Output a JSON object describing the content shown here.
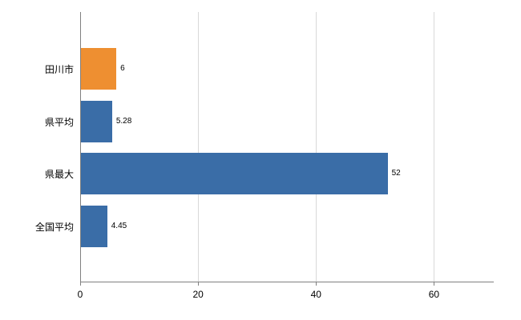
{
  "chart_data": {
    "type": "bar",
    "orientation": "horizontal",
    "title": "",
    "xlabel": "",
    "ylabel": "",
    "categories": [
      "田川市",
      "県平均",
      "県最大",
      "全国平均"
    ],
    "values": [
      6,
      5.28,
      52,
      4.45
    ],
    "value_labels": [
      "6",
      "5.28",
      "52",
      "4.45"
    ],
    "bar_colors": [
      "#ee8f31",
      "#3a6da7",
      "#3a6da7",
      "#3a6da7"
    ],
    "x_ticks": [
      0,
      20,
      40,
      60
    ],
    "x_tick_labels": [
      "0",
      "20",
      "40",
      "60"
    ],
    "xlim": [
      0,
      70
    ],
    "grid": true,
    "legend": "none",
    "background_color": "#ffffff",
    "gridline_color": "#d9d9d9",
    "axis_color": "#808080",
    "accent_orange": "#ee8f31",
    "accent_blue": "#3a6da7"
  }
}
